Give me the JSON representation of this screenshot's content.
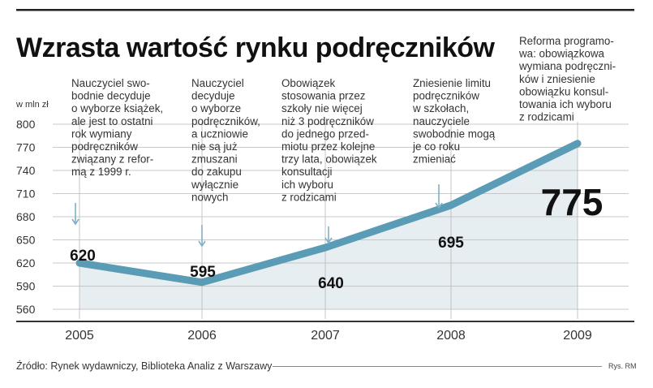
{
  "chart_data": {
    "type": "area",
    "title": "Wzrasta wartość rynku podręczników",
    "ylabel": "w mln zł",
    "ylim": [
      560,
      800
    ],
    "yticks": [
      800,
      770,
      740,
      710,
      680,
      650,
      620,
      590,
      560
    ],
    "x": [
      "2005",
      "2006",
      "2007",
      "2008",
      "2009"
    ],
    "values": [
      620,
      595,
      640,
      695,
      775
    ],
    "data_labels": [
      "620",
      "595",
      "640",
      "695",
      "775"
    ],
    "annotations": [
      [
        "Nauczyciel swo-",
        "bodnie decyduje",
        "o wyborze książek,",
        "ale jest to ostatni",
        "rok wymiany",
        "podręczników",
        "związany z refor-",
        "mą z 1999 r."
      ],
      [
        "Nauczyciel",
        "decyduje",
        "o wyborze",
        "podręczników,",
        "a uczniowie",
        "nie są już",
        "zmuszani",
        "do zakupu",
        "wyłącznie",
        "nowych"
      ],
      [
        "Obowiązek",
        "stosowania przez",
        "szkoły nie więcej",
        "niż 3 podręczników",
        "do jednego przed-",
        "miotu przez kolejne",
        "trzy lata, obowiązek",
        "konsultacji",
        "ich wyboru",
        "z rodzicami"
      ],
      [
        "Zniesienie limitu",
        "podręczników",
        "w szkołach,",
        "nauczyciele",
        "swobodnie mogą",
        "je co roku",
        "zmieniać"
      ],
      [
        "Reforma programo-",
        "wa: obowiązkowa",
        "wymiana podręczni-",
        "ków i zniesienie",
        "obowiązku konsul-",
        "towania ich wyboru",
        "z rodzicami"
      ]
    ],
    "grid": true,
    "legend": "none",
    "colors": {
      "line": "#5a9bb5",
      "area": "#e6eef2",
      "grid": "#b8b8b8",
      "arrow": "#7fb0c4",
      "text": "#222222"
    }
  },
  "footer": {
    "source": "Źródło: Rynek wydawniczy, Biblioteka Analiz z Warszawy",
    "credit": "Rys. RM"
  }
}
